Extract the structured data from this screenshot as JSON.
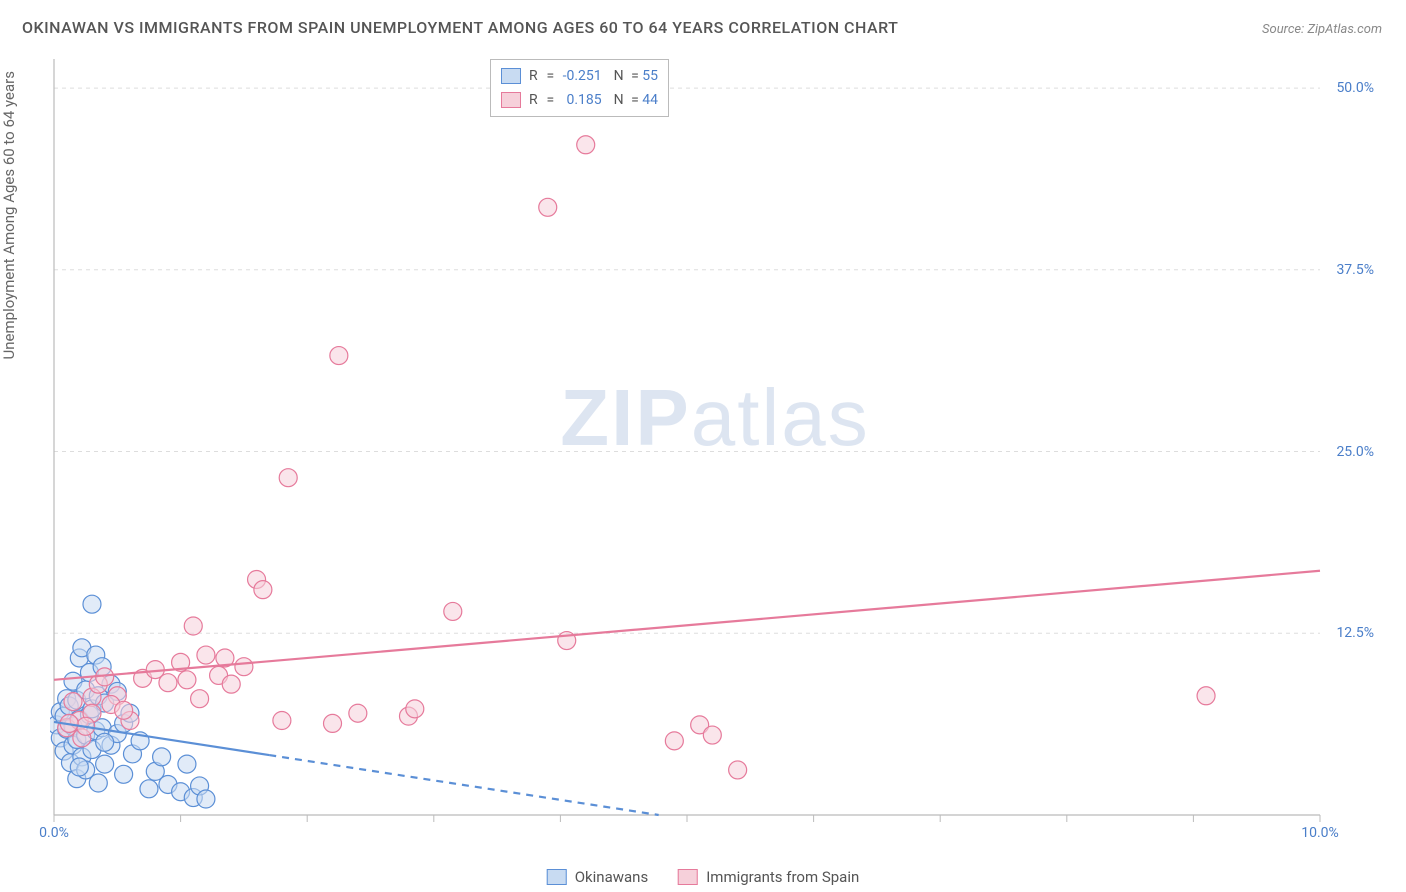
{
  "title": "OKINAWAN VS IMMIGRANTS FROM SPAIN UNEMPLOYMENT AMONG AGES 60 TO 64 YEARS CORRELATION CHART",
  "source_label": "Source: ",
  "source_name": "ZipAtlas.com",
  "ylabel": "Unemployment Among Ages 60 to 64 years",
  "watermark": {
    "bold": "ZIP",
    "light": "atlas"
  },
  "chart": {
    "type": "scatter",
    "background_color": "#ffffff",
    "grid_color": "#dddddd",
    "axis_line_color": "#bbbbbb",
    "tick_color": "#4a7ec9",
    "xlim": [
      0,
      10
    ],
    "ylim": [
      0,
      52
    ],
    "xticks": [
      0,
      1,
      2,
      3,
      4,
      5,
      6,
      7,
      8,
      9,
      10
    ],
    "xtick_labels_show": [
      0,
      10
    ],
    "xtick_label_fmt": [
      "0.0%",
      "10.0%"
    ],
    "yticks": [
      12.5,
      25.0,
      37.5,
      50.0
    ],
    "ytick_label_fmt": [
      "12.5%",
      "25.0%",
      "37.5%",
      "50.0%"
    ],
    "marker_radius": 9,
    "marker_stroke_width": 1.2,
    "trend_line_width": 2.2,
    "series": [
      {
        "name": "Okinawans",
        "fill": "#c8dbf2",
        "stroke": "#5b8fd6",
        "fill_opacity": 0.55,
        "R": "-0.251",
        "N": "55",
        "trend": {
          "y_at_x0": 6.4,
          "y_at_x10": -7.0,
          "dashed_after_x": 1.7
        },
        "points": [
          [
            0.02,
            6.2
          ],
          [
            0.05,
            7.1
          ],
          [
            0.05,
            5.3
          ],
          [
            0.08,
            6.8
          ],
          [
            0.08,
            4.4
          ],
          [
            0.1,
            8.0
          ],
          [
            0.1,
            5.9
          ],
          [
            0.12,
            7.5
          ],
          [
            0.13,
            3.6
          ],
          [
            0.15,
            9.2
          ],
          [
            0.15,
            6.1
          ],
          [
            0.15,
            4.8
          ],
          [
            0.18,
            5.2
          ],
          [
            0.18,
            7.9
          ],
          [
            0.18,
            2.5
          ],
          [
            0.2,
            6.6
          ],
          [
            0.2,
            10.8
          ],
          [
            0.22,
            11.5
          ],
          [
            0.22,
            4.0
          ],
          [
            0.25,
            8.6
          ],
          [
            0.25,
            5.5
          ],
          [
            0.25,
            3.1
          ],
          [
            0.28,
            6.9
          ],
          [
            0.28,
            9.8
          ],
          [
            0.3,
            14.5
          ],
          [
            0.3,
            7.3
          ],
          [
            0.3,
            4.5
          ],
          [
            0.33,
            11.0
          ],
          [
            0.33,
            5.8
          ],
          [
            0.35,
            8.2
          ],
          [
            0.35,
            2.2
          ],
          [
            0.38,
            10.2
          ],
          [
            0.38,
            6.0
          ],
          [
            0.4,
            7.7
          ],
          [
            0.4,
            3.5
          ],
          [
            0.45,
            9.0
          ],
          [
            0.45,
            4.8
          ],
          [
            0.5,
            5.6
          ],
          [
            0.5,
            8.5
          ],
          [
            0.55,
            6.3
          ],
          [
            0.55,
            2.8
          ],
          [
            0.6,
            7.0
          ],
          [
            0.62,
            4.2
          ],
          [
            0.68,
            5.1
          ],
          [
            0.75,
            1.8
          ],
          [
            0.8,
            3.0
          ],
          [
            0.85,
            4.0
          ],
          [
            0.9,
            2.1
          ],
          [
            1.0,
            1.6
          ],
          [
            1.05,
            3.5
          ],
          [
            1.1,
            1.2
          ],
          [
            1.15,
            2.0
          ],
          [
            1.2,
            1.1
          ],
          [
            0.4,
            5.0
          ],
          [
            0.2,
            3.3
          ]
        ]
      },
      {
        "name": "Immigrants from Spain",
        "fill": "#f6d0da",
        "stroke": "#e67a9b",
        "fill_opacity": 0.55,
        "R": "0.185",
        "N": "44",
        "trend": {
          "y_at_x0": 9.3,
          "y_at_x10": 16.8,
          "dashed_after_x": null
        },
        "points": [
          [
            0.1,
            6.0
          ],
          [
            0.15,
            7.8
          ],
          [
            0.2,
            6.5
          ],
          [
            0.22,
            5.3
          ],
          [
            0.3,
            8.1
          ],
          [
            0.3,
            7.0
          ],
          [
            0.35,
            9.0
          ],
          [
            0.4,
            9.5
          ],
          [
            0.5,
            8.2
          ],
          [
            0.6,
            6.5
          ],
          [
            0.7,
            9.4
          ],
          [
            0.8,
            10.0
          ],
          [
            0.9,
            9.1
          ],
          [
            1.0,
            10.5
          ],
          [
            1.05,
            9.3
          ],
          [
            1.1,
            13.0
          ],
          [
            1.15,
            8.0
          ],
          [
            1.2,
            11.0
          ],
          [
            1.3,
            9.6
          ],
          [
            1.35,
            10.8
          ],
          [
            1.4,
            9.0
          ],
          [
            1.5,
            10.2
          ],
          [
            1.6,
            16.2
          ],
          [
            1.65,
            15.5
          ],
          [
            1.8,
            6.5
          ],
          [
            1.85,
            23.2
          ],
          [
            2.2,
            6.3
          ],
          [
            2.25,
            31.6
          ],
          [
            2.4,
            7.0
          ],
          [
            2.8,
            6.8
          ],
          [
            2.85,
            7.3
          ],
          [
            3.15,
            14.0
          ],
          [
            3.9,
            41.8
          ],
          [
            4.05,
            12.0
          ],
          [
            4.2,
            46.1
          ],
          [
            4.9,
            5.1
          ],
          [
            5.1,
            6.2
          ],
          [
            5.2,
            5.5
          ],
          [
            5.4,
            3.1
          ],
          [
            9.1,
            8.2
          ],
          [
            0.45,
            7.6
          ],
          [
            0.25,
            6.1
          ],
          [
            0.55,
            7.2
          ],
          [
            0.12,
            6.3
          ]
        ]
      }
    ]
  },
  "legend_top": {
    "r_label": "R",
    "eq": " = ",
    "n_label": "N",
    "rows": [
      {
        "swatch_fill": "#c8dbf2",
        "swatch_stroke": "#5b8fd6",
        "R": "-0.251",
        "N": "55"
      },
      {
        "swatch_fill": "#f6d0da",
        "swatch_stroke": "#e67a9b",
        "R": "0.185",
        "N": "44"
      }
    ]
  },
  "legend_bottom": [
    {
      "label": "Okinawans",
      "fill": "#c8dbf2",
      "stroke": "#5b8fd6"
    },
    {
      "label": "Immigrants from Spain",
      "fill": "#f6d0da",
      "stroke": "#e67a9b"
    }
  ]
}
